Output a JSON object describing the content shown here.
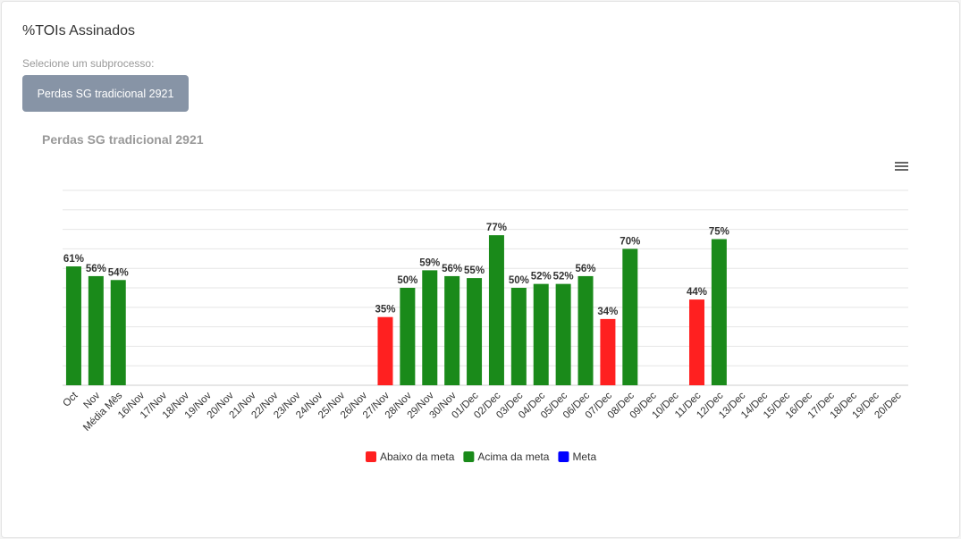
{
  "header": {
    "title": "%TOIs Assinados",
    "select_label": "Selecione um subprocesso:",
    "subprocess_button": "Perdas SG tradicional 2921"
  },
  "colors": {
    "below": "#ff2020",
    "above": "#1a8a1a",
    "meta": "#0000ff"
  },
  "chart_data": {
    "type": "bar",
    "title": "Perdas SG tradicional 2921",
    "menu_icon": "hamburger-menu-icon",
    "ylim": [
      0,
      100
    ],
    "grid": true,
    "legend_placement": "bottom-center",
    "legend": [
      {
        "label": "Abaixo da meta",
        "color": "#ff2020"
      },
      {
        "label": "Acima da meta",
        "color": "#1a8a1a"
      },
      {
        "label": "Meta",
        "color": "#0000ff"
      }
    ],
    "categories": [
      "Oct",
      "Nov",
      "Média Mês",
      "16/Nov",
      "17/Nov",
      "18/Nov",
      "19/Nov",
      "20/Nov",
      "21/Nov",
      "22/Nov",
      "23/Nov",
      "24/Nov",
      "25/Nov",
      "26/Nov",
      "27/Nov",
      "28/Nov",
      "29/Nov",
      "30/Nov",
      "01/Dec",
      "02/Dec",
      "03/Dec",
      "04/Dec",
      "05/Dec",
      "06/Dec",
      "07/Dec",
      "08/Dec",
      "09/Dec",
      "10/Dec",
      "11/Dec",
      "12/Dec",
      "13/Dec",
      "14/Dec",
      "15/Dec",
      "16/Dec",
      "17/Dec",
      "18/Dec",
      "19/Dec",
      "20/Dec"
    ],
    "values": [
      61,
      56,
      54,
      null,
      null,
      null,
      null,
      null,
      null,
      null,
      null,
      null,
      null,
      null,
      35,
      50,
      59,
      56,
      55,
      77,
      50,
      52,
      52,
      56,
      34,
      70,
      null,
      null,
      44,
      75,
      null,
      null,
      null,
      null,
      null,
      null,
      null,
      null
    ],
    "status": [
      "above",
      "above",
      "above",
      null,
      null,
      null,
      null,
      null,
      null,
      null,
      null,
      null,
      null,
      null,
      "below",
      "above",
      "above",
      "above",
      "above",
      "above",
      "above",
      "above",
      "above",
      "above",
      "below",
      "above",
      null,
      null,
      "below",
      "above",
      null,
      null,
      null,
      null,
      null,
      null,
      null,
      null
    ],
    "labels": [
      "61%",
      "56%",
      "54%",
      null,
      null,
      null,
      null,
      null,
      null,
      null,
      null,
      null,
      null,
      null,
      "35%",
      "50%",
      "59%",
      "56%",
      "55%",
      "77%",
      "50%",
      "52%",
      "52%",
      "56%",
      "34%",
      "70%",
      null,
      null,
      "44%",
      "75%",
      null,
      null,
      null,
      null,
      null,
      null,
      null,
      null
    ]
  }
}
